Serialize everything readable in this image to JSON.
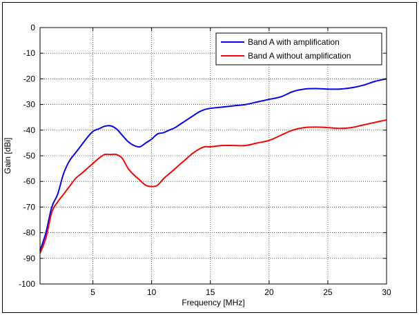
{
  "chart_data": {
    "type": "line",
    "title": "",
    "xlabel": "Frequency [MHz]",
    "ylabel": "Gain [dBi]",
    "xlim": [
      0.5,
      30
    ],
    "ylim": [
      -100,
      0
    ],
    "xticks": [
      5,
      10,
      15,
      20,
      25,
      30
    ],
    "xtick_labels": [
      "5",
      "10",
      "15",
      "20",
      "25",
      "30"
    ],
    "yticks": [
      0,
      -10,
      -20,
      -30,
      -40,
      -50,
      -60,
      -70,
      -80,
      -90,
      -100
    ],
    "ytick_labels": [
      "0",
      "-10",
      "-20",
      "-30",
      "-40",
      "-50",
      "-60",
      "-70",
      "-80",
      "-90",
      "-100"
    ],
    "grid": true,
    "grid_style": "dotted",
    "legend_position": "top-right",
    "series": [
      {
        "name": "Band A with amplification",
        "color": "#0000ff",
        "x": [
          0.5,
          1.0,
          1.5,
          2.0,
          2.5,
          3.0,
          3.5,
          4.0,
          4.5,
          5.0,
          5.5,
          6.0,
          6.5,
          7.0,
          7.5,
          8.0,
          8.5,
          9.0,
          9.5,
          10.0,
          10.5,
          11.0,
          11.5,
          12.0,
          12.5,
          13.0,
          13.5,
          14.0,
          14.5,
          15.0,
          16.0,
          17.0,
          18.0,
          19.0,
          20.0,
          21.0,
          22.0,
          23.0,
          24.0,
          25.0,
          26.0,
          27.0,
          28.0,
          29.0,
          30.0
        ],
        "y": [
          -87,
          -80,
          -70,
          -65,
          -57,
          -52,
          -49,
          -46,
          -43,
          -40.5,
          -39.5,
          -38.5,
          -38.3,
          -39.5,
          -42,
          -44.5,
          -46,
          -46.5,
          -45,
          -43.5,
          -41.5,
          -41,
          -40,
          -39,
          -37.5,
          -36,
          -34.5,
          -33,
          -32,
          -31.5,
          -31,
          -30.5,
          -30,
          -29,
          -28,
          -27,
          -25,
          -24,
          -23.8,
          -24,
          -24,
          -23.5,
          -22.5,
          -21,
          -20
        ]
      },
      {
        "name": "Band A without amplification",
        "color": "#ff0000",
        "x": [
          0.5,
          1.0,
          1.5,
          2.0,
          2.5,
          3.0,
          3.5,
          4.0,
          4.5,
          5.0,
          5.5,
          6.0,
          6.5,
          7.0,
          7.5,
          8.0,
          8.5,
          9.0,
          9.5,
          10.0,
          10.5,
          11.0,
          11.5,
          12.0,
          12.5,
          13.0,
          13.5,
          14.0,
          14.5,
          15.0,
          16.0,
          17.0,
          18.0,
          19.0,
          20.0,
          21.0,
          22.0,
          23.0,
          24.0,
          25.0,
          26.0,
          27.0,
          28.0,
          29.0,
          30.0
        ],
        "y": [
          -88,
          -82,
          -72,
          -68,
          -65,
          -62,
          -59,
          -57,
          -55,
          -53,
          -51,
          -49.5,
          -49.5,
          -49.5,
          -51,
          -55,
          -57.5,
          -59.5,
          -61.5,
          -62,
          -61.5,
          -59,
          -57,
          -55,
          -53,
          -51,
          -49,
          -47.5,
          -46.5,
          -46.5,
          -46,
          -46,
          -46,
          -45,
          -44,
          -42,
          -40,
          -39,
          -38.8,
          -39,
          -39.3,
          -39,
          -38,
          -37,
          -36
        ]
      }
    ]
  }
}
